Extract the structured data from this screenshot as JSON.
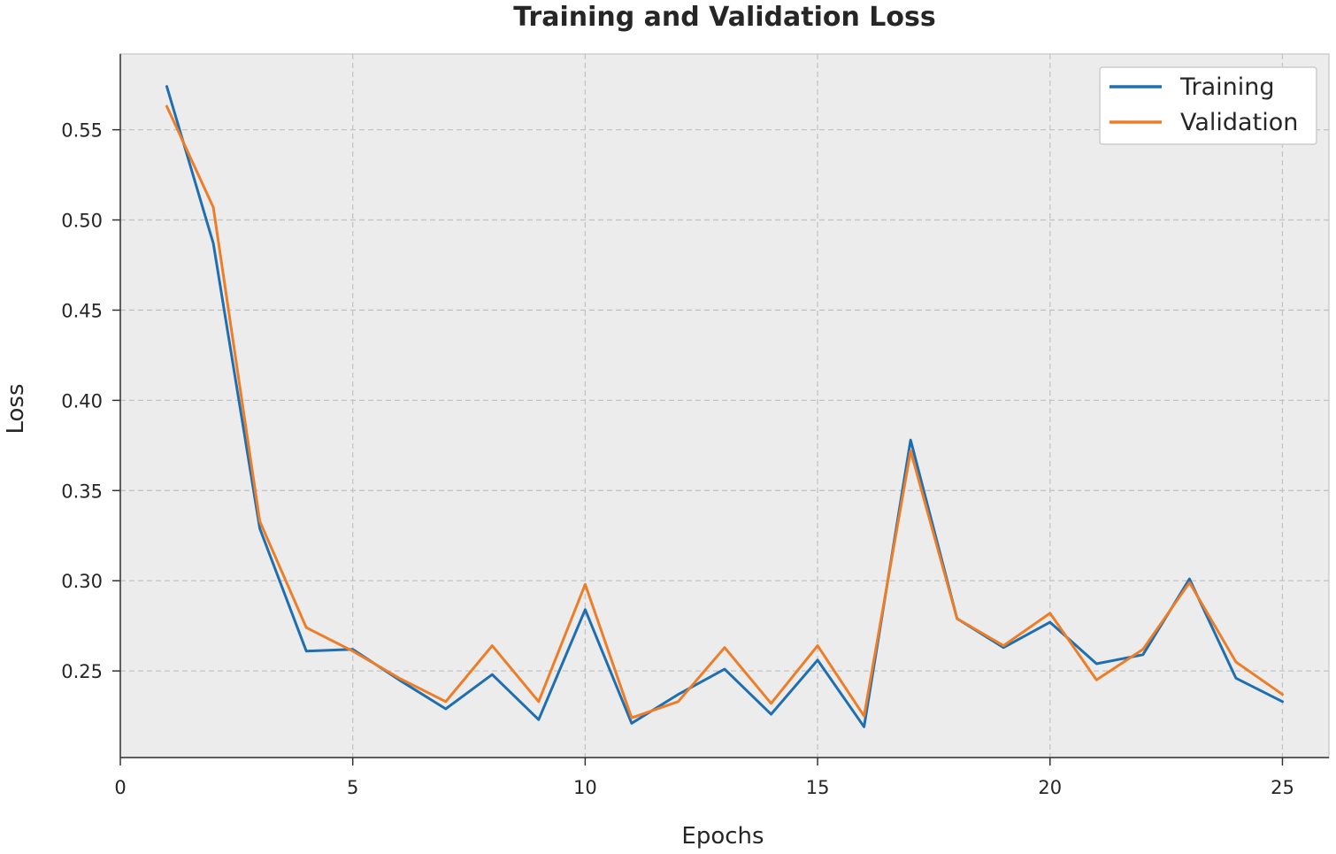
{
  "chart_data": {
    "type": "line",
    "title": "Training and Validation Loss",
    "xlabel": "Epochs",
    "ylabel": "Loss",
    "xlim": [
      0,
      26
    ],
    "ylim": [
      0.202,
      0.592
    ],
    "xticks": [
      0,
      5,
      10,
      15,
      20,
      25
    ],
    "yticks": [
      0.25,
      0.3,
      0.35,
      0.4,
      0.45,
      0.5,
      0.55
    ],
    "ytick_labels": [
      "0.25",
      "0.30",
      "0.35",
      "0.40",
      "0.45",
      "0.50",
      "0.55"
    ],
    "grid": true,
    "legend_position": "top-right",
    "x": [
      1,
      2,
      3,
      4,
      5,
      6,
      7,
      8,
      9,
      10,
      11,
      12,
      13,
      14,
      15,
      16,
      17,
      18,
      19,
      20,
      21,
      22,
      23,
      24,
      25
    ],
    "series": [
      {
        "name": "Training",
        "color": "#1f6fb0",
        "values": [
          0.574,
          0.487,
          0.329,
          0.261,
          0.262,
          0.245,
          0.229,
          0.248,
          0.223,
          0.284,
          0.221,
          0.237,
          0.251,
          0.226,
          0.256,
          0.219,
          0.378,
          0.279,
          0.263,
          0.277,
          0.254,
          0.259,
          0.301,
          0.246,
          0.233
        ]
      },
      {
        "name": "Validation",
        "color": "#ee7d28",
        "values": [
          0.563,
          0.507,
          0.333,
          0.274,
          0.261,
          0.246,
          0.233,
          0.264,
          0.233,
          0.298,
          0.224,
          0.233,
          0.263,
          0.232,
          0.264,
          0.225,
          0.372,
          0.279,
          0.264,
          0.282,
          0.245,
          0.262,
          0.299,
          0.255,
          0.237
        ]
      }
    ]
  }
}
